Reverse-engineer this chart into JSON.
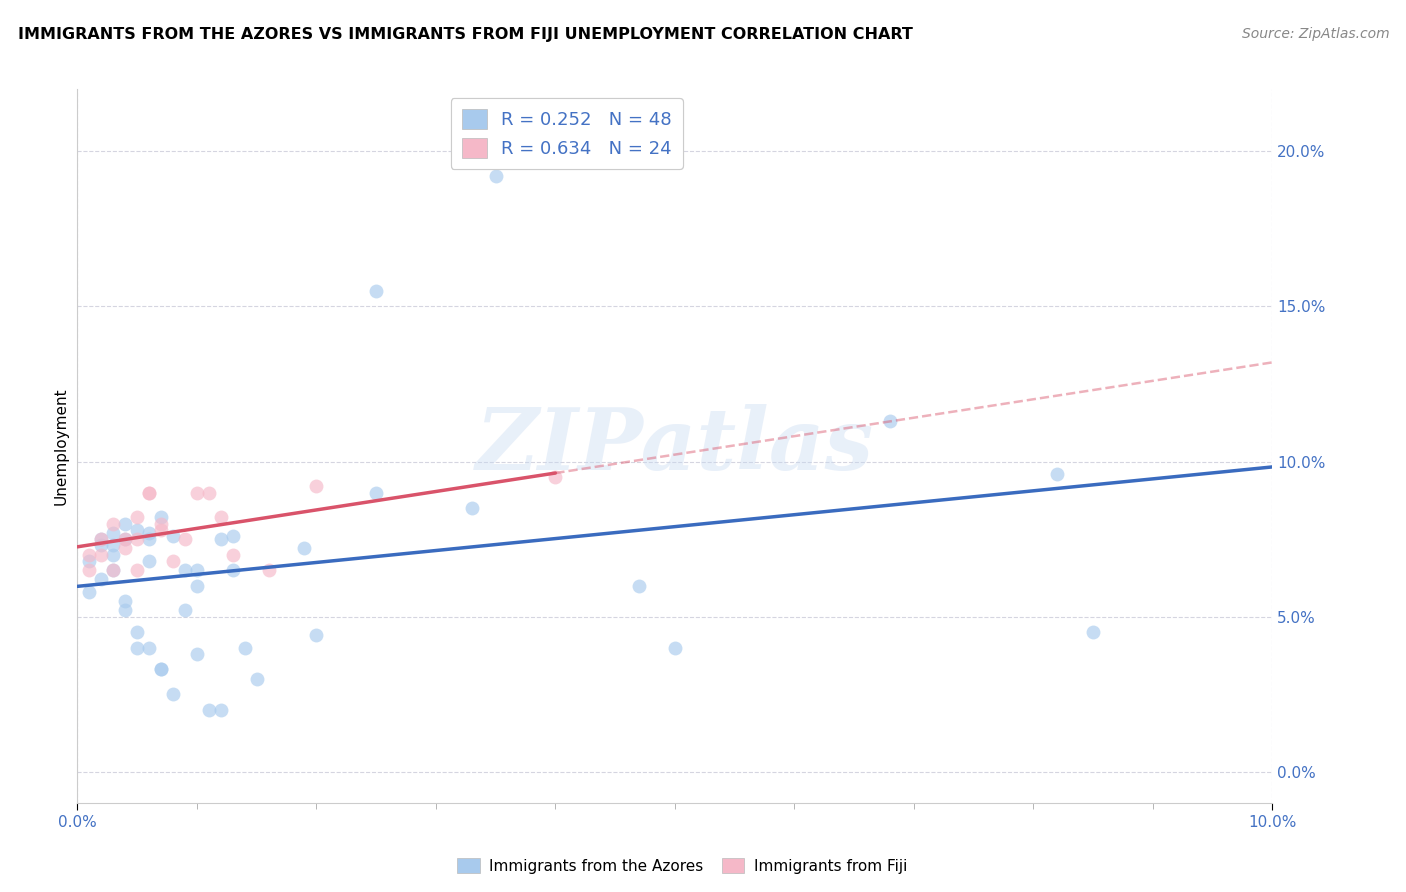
{
  "title": "IMMIGRANTS FROM THE AZORES VS IMMIGRANTS FROM FIJI UNEMPLOYMENT CORRELATION CHART",
  "source": "Source: ZipAtlas.com",
  "ylabel": "Unemployment",
  "legend_label1": "Immigrants from the Azores",
  "legend_label2": "Immigrants from Fiji",
  "R1": 0.252,
  "N1": 48,
  "R2": 0.634,
  "N2": 24,
  "xlim": [
    0.0,
    0.1
  ],
  "ylim": [
    -0.01,
    0.22
  ],
  "xtick_show": [
    0.0,
    0.1
  ],
  "xtick_minor": [
    0.01,
    0.02,
    0.03,
    0.04,
    0.05,
    0.06,
    0.07,
    0.08,
    0.09
  ],
  "yticks": [
    0.0,
    0.05,
    0.1,
    0.15,
    0.2
  ],
  "blue_scatter_color": "#a8caed",
  "pink_scatter_color": "#f5b8c8",
  "blue_line_color": "#3a6bbf",
  "pink_line_color": "#d9536a",
  "blue_x": [
    0.001,
    0.001,
    0.002,
    0.002,
    0.002,
    0.003,
    0.003,
    0.003,
    0.003,
    0.004,
    0.004,
    0.004,
    0.004,
    0.005,
    0.005,
    0.005,
    0.006,
    0.006,
    0.006,
    0.006,
    0.007,
    0.007,
    0.007,
    0.008,
    0.008,
    0.009,
    0.009,
    0.01,
    0.01,
    0.01,
    0.011,
    0.012,
    0.012,
    0.013,
    0.013,
    0.014,
    0.015,
    0.019,
    0.02,
    0.025,
    0.025,
    0.033,
    0.035,
    0.047,
    0.05,
    0.068,
    0.082,
    0.085
  ],
  "blue_y": [
    0.068,
    0.058,
    0.073,
    0.075,
    0.062,
    0.077,
    0.07,
    0.073,
    0.065,
    0.075,
    0.08,
    0.055,
    0.052,
    0.078,
    0.045,
    0.04,
    0.077,
    0.075,
    0.068,
    0.04,
    0.082,
    0.033,
    0.033,
    0.076,
    0.025,
    0.065,
    0.052,
    0.065,
    0.06,
    0.038,
    0.02,
    0.02,
    0.075,
    0.076,
    0.065,
    0.04,
    0.03,
    0.072,
    0.044,
    0.09,
    0.155,
    0.085,
    0.192,
    0.06,
    0.04,
    0.113,
    0.096,
    0.045
  ],
  "pink_x": [
    0.001,
    0.001,
    0.002,
    0.002,
    0.003,
    0.003,
    0.004,
    0.004,
    0.005,
    0.005,
    0.005,
    0.006,
    0.006,
    0.007,
    0.007,
    0.008,
    0.009,
    0.01,
    0.011,
    0.012,
    0.013,
    0.016,
    0.02,
    0.04
  ],
  "pink_y": [
    0.07,
    0.065,
    0.075,
    0.07,
    0.08,
    0.065,
    0.075,
    0.072,
    0.082,
    0.075,
    0.065,
    0.09,
    0.09,
    0.078,
    0.08,
    0.068,
    0.075,
    0.09,
    0.09,
    0.082,
    0.07,
    0.065,
    0.092,
    0.095
  ],
  "watermark": "ZIPatlas",
  "background_color": "#ffffff",
  "grid_color": "#d5d5e0",
  "tick_label_color": "#4472c4",
  "scatter_size": 100,
  "scatter_alpha": 0.65
}
